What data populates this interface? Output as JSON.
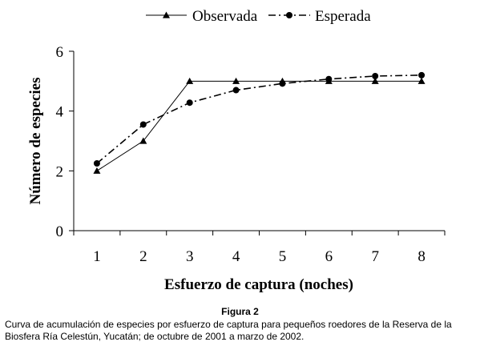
{
  "chart_data": {
    "type": "line",
    "x": [
      1,
      2,
      3,
      4,
      5,
      6,
      7,
      8
    ],
    "series": [
      {
        "name": "Observada",
        "values": [
          2,
          3,
          5,
          5,
          5,
          5,
          5,
          5
        ],
        "marker": "triangle",
        "line_style": "solid"
      },
      {
        "name": "Esperada",
        "values": [
          2.25,
          3.55,
          4.28,
          4.7,
          4.92,
          5.07,
          5.17,
          5.2
        ],
        "marker": "circle",
        "line_style": "dash-dot"
      }
    ],
    "title": "",
    "xlabel": "Esfuerzo de captura (noches)",
    "ylabel": "Número de especies",
    "xlim": [
      0.5,
      8.5
    ],
    "ylim": [
      0,
      6
    ],
    "yticks": [
      0,
      2,
      4,
      6
    ],
    "xticks": [
      1,
      2,
      3,
      4,
      5,
      6,
      7,
      8
    ],
    "grid": false,
    "legend_position": "top"
  },
  "caption": {
    "label": "Figura 2",
    "text": "Curva de acumulación de especies por esfuerzo de captura para pequeños roedores de la Reserva de la Biosfera Ría Celestún, Yucatán; de octubre de 2001 a marzo de 2002."
  },
  "colors": {
    "line": "#000000",
    "background": "#ffffff"
  }
}
